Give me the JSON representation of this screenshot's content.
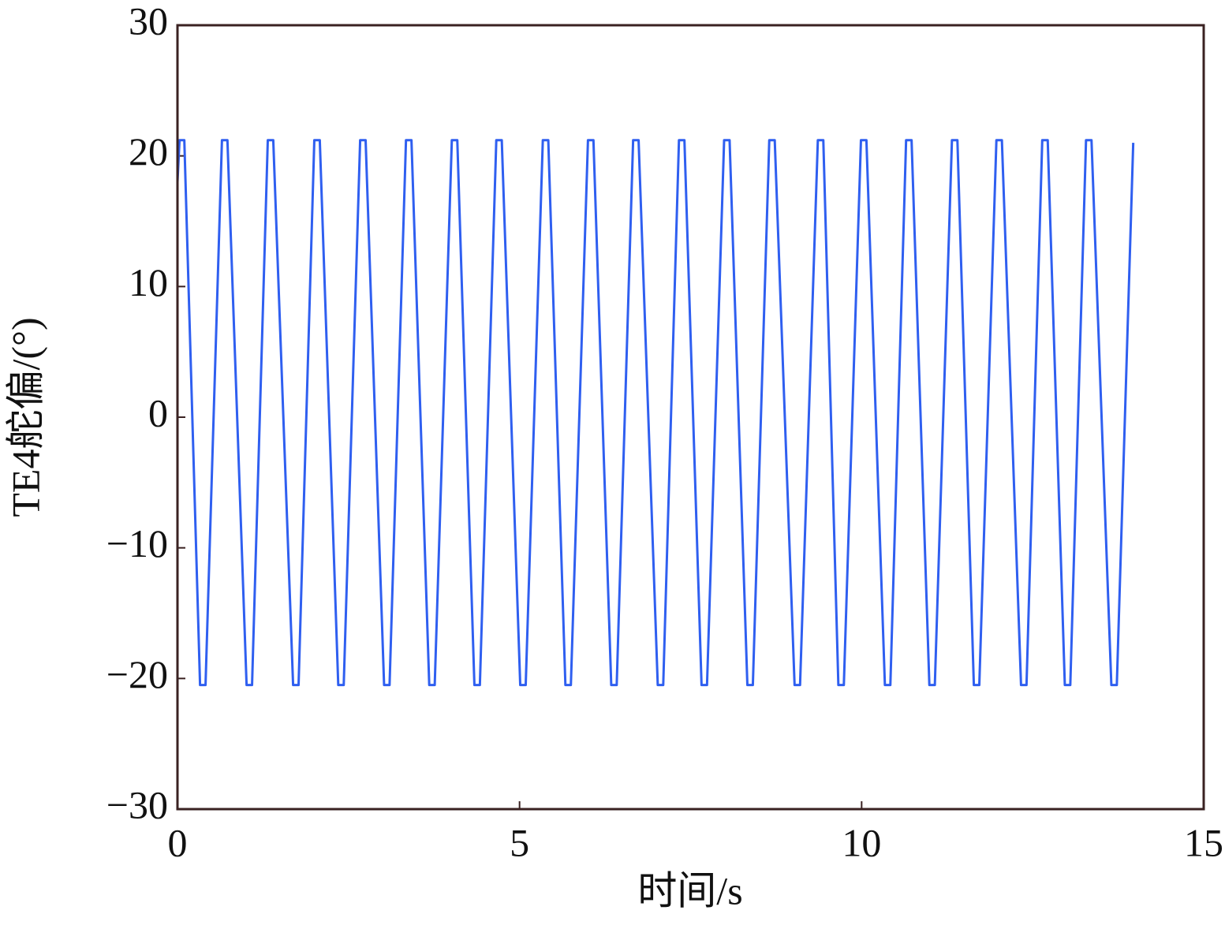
{
  "chart_data": {
    "type": "line",
    "xlabel": "时间/s",
    "ylabel": "TE4舵偏/(°)",
    "xlim": [
      0,
      15
    ],
    "ylim": [
      -30,
      30
    ],
    "xticks": [
      0,
      5,
      10,
      15
    ],
    "yticks": [
      {
        "value": -30,
        "label": "−30"
      },
      {
        "value": -20,
        "label": "−20"
      },
      {
        "value": -10,
        "label": "−10"
      },
      0,
      10,
      20,
      30
    ],
    "grid": false,
    "series": [
      {
        "color": "#2f5ff0",
        "x": [
          0,
          0.03,
          0.1,
          0.33,
          0.41,
          0.65,
          0.73,
          1.01,
          1.09,
          1.32,
          1.4,
          1.69,
          1.77,
          2.0,
          2.08,
          2.35,
          2.43,
          2.67,
          2.75,
          3.02,
          3.1,
          3.34,
          3.42,
          3.68,
          3.76,
          4.01,
          4.09,
          4.34,
          4.42,
          4.66,
          4.74,
          5.01,
          5.09,
          5.34,
          5.42,
          5.67,
          5.75,
          6.0,
          6.08,
          6.34,
          6.42,
          6.66,
          6.74,
          7.02,
          7.1,
          7.33,
          7.41,
          7.66,
          7.74,
          7.99,
          8.07,
          8.33,
          8.41,
          8.65,
          8.73,
          9.02,
          9.1,
          9.36,
          9.44,
          9.66,
          9.74,
          9.99,
          10.07,
          10.34,
          10.42,
          10.65,
          10.73,
          10.99,
          11.07,
          11.32,
          11.4,
          11.64,
          11.72,
          11.97,
          12.05,
          12.33,
          12.41,
          12.64,
          12.72,
          12.97,
          13.05,
          13.28,
          13.36,
          13.65,
          13.73,
          13.97
        ],
        "values": [
          18,
          21.2,
          21.2,
          -20.5,
          -20.5,
          21.2,
          21.2,
          -20.5,
          -20.5,
          21.2,
          21.2,
          -20.5,
          -20.5,
          21.2,
          21.2,
          -20.5,
          -20.5,
          21.2,
          21.2,
          -20.5,
          -20.5,
          21.2,
          21.2,
          -20.5,
          -20.5,
          21.2,
          21.2,
          -20.5,
          -20.5,
          21.2,
          21.2,
          -20.5,
          -20.5,
          21.2,
          21.2,
          -20.5,
          -20.5,
          21.2,
          21.2,
          -20.5,
          -20.5,
          21.2,
          21.2,
          -20.5,
          -20.5,
          21.2,
          21.2,
          -20.5,
          -20.5,
          21.2,
          21.2,
          -20.5,
          -20.5,
          21.2,
          21.2,
          -20.5,
          -20.5,
          21.2,
          21.2,
          -20.5,
          -20.5,
          21.2,
          21.2,
          -20.5,
          -20.5,
          21.2,
          21.2,
          -20.5,
          -20.5,
          21.2,
          21.2,
          -20.5,
          -20.5,
          21.2,
          21.2,
          -20.5,
          -20.5,
          21.2,
          21.2,
          -20.5,
          -20.5,
          21.2,
          21.2,
          -20.5,
          -20.5,
          21
        ]
      }
    ]
  }
}
